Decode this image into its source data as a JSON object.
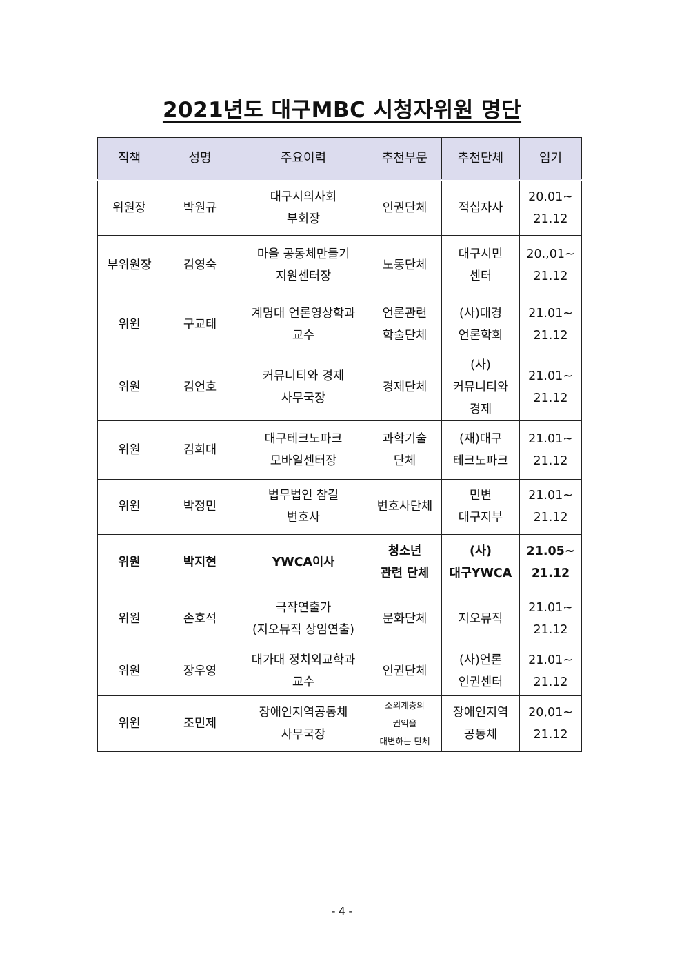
{
  "title": "2021년도 대구MBC 시청자위원 명단",
  "table": {
    "headers": [
      "직책",
      "성명",
      "주요이력",
      "추천부문",
      "추천단체",
      "임기"
    ],
    "rows": [
      {
        "position": "위원장",
        "name": "박원규",
        "career": "대구시의사회\n부회장",
        "sector": "인권단체",
        "org": "적십자사",
        "term": "20.01~\n21.12"
      },
      {
        "position": "부위원장",
        "name": "김영숙",
        "career": "마을 공동체만들기\n지원센터장",
        "sector": "노동단체",
        "org": "대구시민\n센터",
        "term": "20.,01~\n21.12"
      },
      {
        "position": "위원",
        "name": "구교태",
        "career": "계명대 언론영상학과\n교수",
        "sector": "언론관련\n학술단체",
        "org": "(사)대경\n언론학회",
        "term": "21.01~\n21.12"
      },
      {
        "position": "위원",
        "name": "김언호",
        "career": "커뮤니티와 경제\n사무국장",
        "sector": "경제단체",
        "org": "(사)\n커뮤니티와\n경제",
        "term": "21.01~\n21.12"
      },
      {
        "position": "위원",
        "name": "김희대",
        "career": "대구테크노파크\n모바일센터장",
        "sector": "과학기술\n단체",
        "org": "(재)대구\n테크노파크",
        "term": "21.01~\n21.12"
      },
      {
        "position": "위원",
        "name": "박정민",
        "career": "법무법인 참길\n변호사",
        "sector": "변호사단체",
        "org": "민변\n대구지부",
        "term": "21.01~\n21.12"
      },
      {
        "position": "위원",
        "name": "박지현",
        "career": "YWCA이사",
        "sector": "청소년\n관련 단체",
        "org": "(사)\n대구YWCA",
        "term": "21.05~\n21.12",
        "bold": true
      },
      {
        "position": "위원",
        "name": "손호석",
        "career": "극작연출가\n(지오뮤직 상임연출)",
        "sector": "문화단체",
        "org": "지오뮤직",
        "term": "21.01~\n21.12"
      },
      {
        "position": "위원",
        "name": "장우영",
        "career": "대가대 정치외교학과\n교수",
        "sector": "인권단체",
        "org": "(사)언론\n인권센터",
        "term": "21.01~\n21.12"
      },
      {
        "position": "위원",
        "name": "조민제",
        "career": "장애인지역공동체\n사무국장",
        "sector": "소외계층의\n권익을\n대변하는 단체",
        "org": "장애인지역\n공동체",
        "term": "20,01~\n21.12",
        "small_sector": true
      }
    ]
  },
  "page_number": "- 4 -"
}
